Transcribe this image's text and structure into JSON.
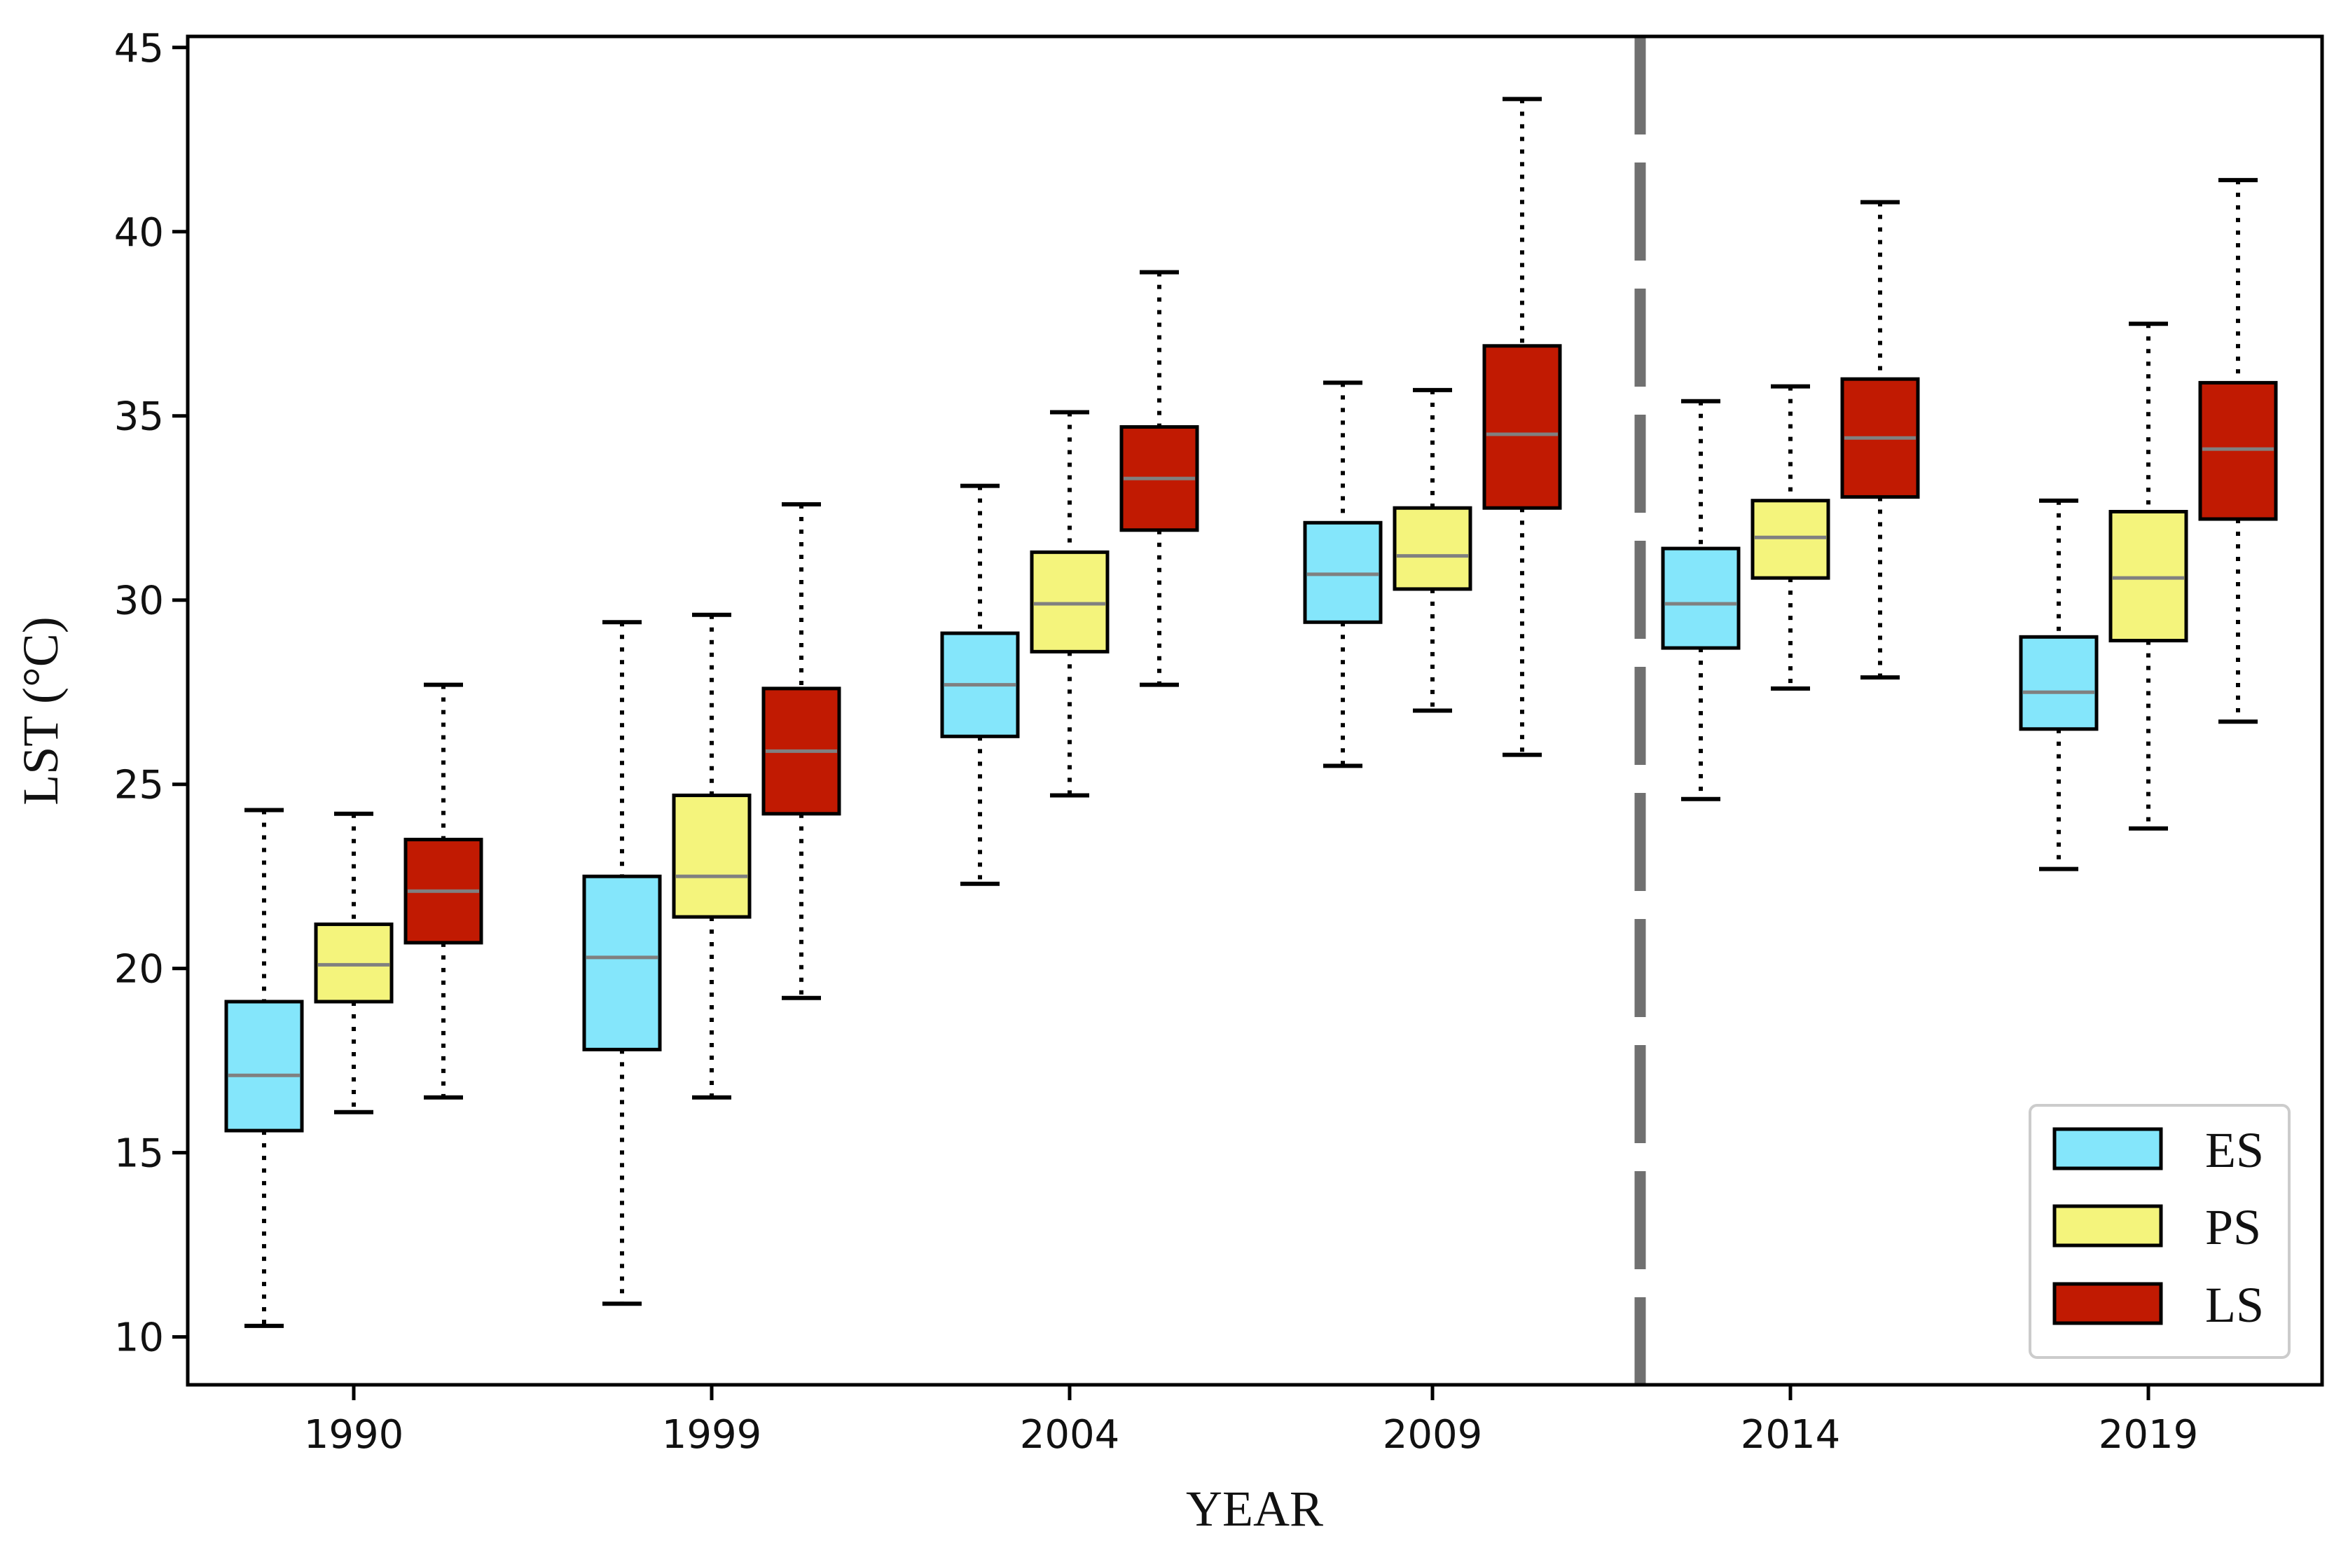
{
  "chart_data": {
    "type": "boxplot",
    "title": "",
    "xlabel": "YEAR",
    "ylabel": "LST (°C)",
    "ylim": [
      8.7,
      45.3
    ],
    "yticks": [
      10,
      15,
      20,
      25,
      30,
      35,
      40,
      45
    ],
    "categories": [
      "1990",
      "1999",
      "2004",
      "2009",
      "2014",
      "2019"
    ],
    "divider_after_category": "2009",
    "colors": {
      "ES": "#84e6fb",
      "PS": "#f4f47c",
      "LS": "#c11a02",
      "median": "#808080",
      "divider": "#707070"
    },
    "series": [
      {
        "name": "ES",
        "boxes": [
          {
            "whisker_low": 10.3,
            "q1": 15.6,
            "median": 17.1,
            "q3": 19.1,
            "whisker_high": 24.3
          },
          {
            "whisker_low": 10.9,
            "q1": 17.8,
            "median": 20.3,
            "q3": 22.5,
            "whisker_high": 29.4
          },
          {
            "whisker_low": 22.3,
            "q1": 26.3,
            "median": 27.7,
            "q3": 29.1,
            "whisker_high": 33.1
          },
          {
            "whisker_low": 25.5,
            "q1": 29.4,
            "median": 30.7,
            "q3": 32.1,
            "whisker_high": 35.9
          },
          {
            "whisker_low": 24.6,
            "q1": 28.7,
            "median": 29.9,
            "q3": 31.4,
            "whisker_high": 35.4
          },
          {
            "whisker_low": 22.7,
            "q1": 26.5,
            "median": 27.5,
            "q3": 29.0,
            "whisker_high": 32.7
          }
        ]
      },
      {
        "name": "PS",
        "boxes": [
          {
            "whisker_low": 16.1,
            "q1": 19.1,
            "median": 20.1,
            "q3": 21.2,
            "whisker_high": 24.2
          },
          {
            "whisker_low": 16.5,
            "q1": 21.4,
            "median": 22.5,
            "q3": 24.7,
            "whisker_high": 29.6
          },
          {
            "whisker_low": 24.7,
            "q1": 28.6,
            "median": 29.9,
            "q3": 31.3,
            "whisker_high": 35.1
          },
          {
            "whisker_low": 27.0,
            "q1": 30.3,
            "median": 31.2,
            "q3": 32.5,
            "whisker_high": 35.7
          },
          {
            "whisker_low": 27.6,
            "q1": 30.6,
            "median": 31.7,
            "q3": 32.7,
            "whisker_high": 35.8
          },
          {
            "whisker_low": 23.8,
            "q1": 28.9,
            "median": 30.6,
            "q3": 32.4,
            "whisker_high": 37.5
          }
        ]
      },
      {
        "name": "LS",
        "boxes": [
          {
            "whisker_low": 16.5,
            "q1": 20.7,
            "median": 22.1,
            "q3": 23.5,
            "whisker_high": 27.7
          },
          {
            "whisker_low": 19.2,
            "q1": 24.2,
            "median": 25.9,
            "q3": 27.6,
            "whisker_high": 32.6
          },
          {
            "whisker_low": 27.7,
            "q1": 31.9,
            "median": 33.3,
            "q3": 34.7,
            "whisker_high": 38.9
          },
          {
            "whisker_low": 25.8,
            "q1": 32.5,
            "median": 34.5,
            "q3": 36.9,
            "whisker_high": 43.6
          },
          {
            "whisker_low": 27.9,
            "q1": 32.8,
            "median": 34.4,
            "q3": 36.0,
            "whisker_high": 40.8
          },
          {
            "whisker_low": 26.7,
            "q1": 32.2,
            "median": 34.1,
            "q3": 35.9,
            "whisker_high": 41.4
          }
        ]
      }
    ],
    "legend": {
      "position": "bottom-right",
      "entries": [
        "ES",
        "PS",
        "LS"
      ]
    }
  }
}
